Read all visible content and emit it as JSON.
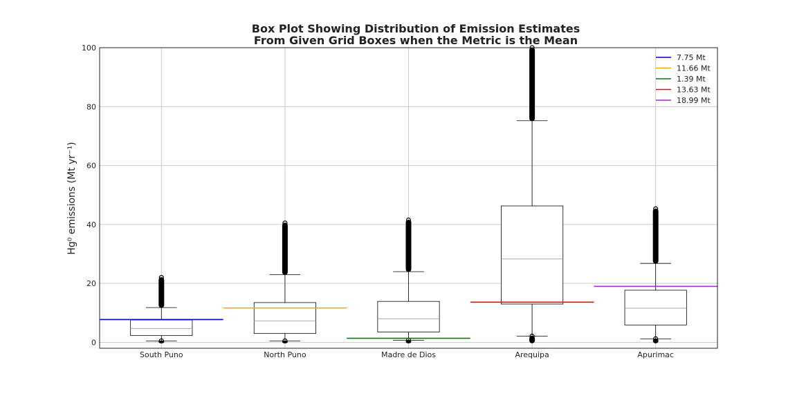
{
  "chart_data": {
    "type": "box",
    "title_line1": "Box Plot Showing Distribution of Emission Estimates",
    "title_line2": "From Given Grid Boxes when the Metric is the Mean",
    "ylabel": "Hg⁰ emissions (Mt yr⁻¹)",
    "ylim": [
      -2,
      100
    ],
    "yticks": [
      0,
      20,
      40,
      60,
      80,
      100
    ],
    "grid": true,
    "legend_position": "top-right",
    "categories": [
      "South Puno",
      "North Puno",
      "Madre de Dios",
      "Arequipa",
      "Apurimac"
    ],
    "boxes": [
      {
        "category": "South Puno",
        "whisker_low": 0.5,
        "q1": 2.3,
        "median": 4.7,
        "q3": 7.6,
        "whisker_high": 11.8,
        "outliers_high": [
          11.8,
          22
        ],
        "outliers_low": [
          -0.2,
          0.5
        ]
      },
      {
        "category": "North Puno",
        "whisker_low": 0.5,
        "q1": 3.0,
        "median": 7.3,
        "q3": 13.5,
        "whisker_high": 23.0,
        "outliers_high": [
          23.0,
          40.5
        ],
        "outliers_low": [
          -0.2,
          0.5
        ]
      },
      {
        "category": "Madre de Dios",
        "whisker_low": 0.7,
        "q1": 3.5,
        "median": 8.0,
        "q3": 13.9,
        "whisker_high": 24.0,
        "outliers_high": [
          24.0,
          41.5
        ],
        "outliers_low": [
          -0.2,
          0.7
        ]
      },
      {
        "category": "Arequipa",
        "whisker_low": 2.1,
        "q1": 13.0,
        "median": 28.3,
        "q3": 46.3,
        "whisker_high": 75.2,
        "outliers_high": [
          75.2,
          100
        ],
        "outliers_low": [
          -0.2,
          2.1
        ]
      },
      {
        "category": "Apurimac",
        "whisker_low": 1.2,
        "q1": 5.9,
        "median": 11.6,
        "q3": 17.7,
        "whisker_high": 26.8,
        "outliers_high": [
          26.8,
          45.3
        ],
        "outliers_low": [
          -0.2,
          1.2
        ]
      }
    ],
    "reference_lines": [
      {
        "name": "7.75 Mt",
        "value": 7.75,
        "color": "#0000cc",
        "category_index": 0
      },
      {
        "name": "11.66 Mt",
        "value": 11.66,
        "color": "#ffa500",
        "category_index": 1
      },
      {
        "name": "1.39 Mt",
        "value": 1.39,
        "color": "#008000",
        "category_index": 2
      },
      {
        "name": "13.63 Mt",
        "value": 13.63,
        "color": "#ff0000",
        "category_index": 3
      },
      {
        "name": "18.99 Mt",
        "value": 18.99,
        "color": "#9932cc",
        "category_index": 4
      }
    ]
  }
}
